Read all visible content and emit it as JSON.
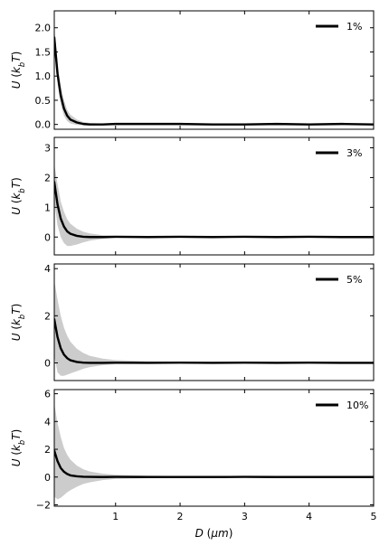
{
  "figure": {
    "ylabel": "U (k_bT)",
    "xlabel": "D (μm)"
  },
  "colors": {
    "line": "#000000",
    "band": "#cccccc",
    "axes": "#000000",
    "background": "#ffffff"
  },
  "chart_data": [
    {
      "type": "line",
      "legend_label": "1%",
      "legend_position": "top-right",
      "xlabel": "",
      "ylabel": "U (k_bT)",
      "xlim": [
        0.05,
        5.0
      ],
      "ylim": [
        -0.1,
        2.35
      ],
      "yticks": [
        0.0,
        0.5,
        1.0,
        1.5,
        2.0
      ],
      "ytick_labels": [
        "0.0",
        "0.5",
        "1.0",
        "1.5",
        "2.0"
      ],
      "xticks": [
        1,
        2,
        3,
        4,
        5
      ],
      "xtick_labels": [],
      "series": [
        {
          "x": [
            0.05,
            0.1,
            0.15,
            0.2,
            0.25,
            0.3,
            0.4,
            0.5,
            0.6,
            0.8,
            1.0,
            1.5,
            2.0,
            2.5,
            3.0,
            3.5,
            4.0,
            4.5,
            5.0
          ],
          "y": [
            1.8,
            1.05,
            0.6,
            0.33,
            0.18,
            0.1,
            0.04,
            0.01,
            0.0,
            0.0,
            0.01,
            0.01,
            0.01,
            0.0,
            0.0,
            0.01,
            0.0,
            0.01,
            0.0
          ],
          "band_lower": [
            1.6,
            0.85,
            0.42,
            0.18,
            0.07,
            0.02,
            -0.01,
            -0.02,
            -0.02,
            -0.01,
            -0.01,
            -0.01,
            -0.01,
            -0.01,
            -0.01,
            -0.01,
            -0.01,
            -0.01,
            -0.01
          ],
          "band_upper": [
            2.0,
            1.25,
            0.8,
            0.5,
            0.3,
            0.2,
            0.1,
            0.05,
            0.03,
            0.02,
            0.02,
            0.02,
            0.02,
            0.02,
            0.02,
            0.02,
            0.02,
            0.02,
            0.02
          ]
        }
      ]
    },
    {
      "type": "line",
      "legend_label": "3%",
      "legend_position": "top-right",
      "xlabel": "",
      "ylabel": "U (k_bT)",
      "xlim": [
        0.05,
        5.0
      ],
      "ylim": [
        -0.6,
        3.35
      ],
      "yticks": [
        0,
        1,
        2,
        3
      ],
      "ytick_labels": [
        "0",
        "1",
        "2",
        "3"
      ],
      "xticks": [
        1,
        2,
        3,
        4,
        5
      ],
      "xtick_labels": [],
      "series": [
        {
          "x": [
            0.05,
            0.1,
            0.15,
            0.2,
            0.25,
            0.3,
            0.4,
            0.5,
            0.6,
            0.8,
            1.0,
            1.5,
            2.0,
            2.5,
            3.0,
            3.5,
            4.0,
            4.5,
            5.0
          ],
          "y": [
            1.85,
            1.1,
            0.62,
            0.35,
            0.19,
            0.11,
            0.04,
            0.01,
            0.0,
            0.0,
            0.01,
            0.0,
            0.01,
            0.0,
            0.01,
            0.0,
            0.01,
            0.0,
            0.0
          ],
          "band_lower": [
            1.2,
            0.4,
            0.0,
            -0.2,
            -0.3,
            -0.3,
            -0.25,
            -0.18,
            -0.12,
            -0.06,
            -0.03,
            -0.02,
            -0.02,
            -0.02,
            -0.02,
            -0.02,
            -0.02,
            -0.02,
            -0.02
          ],
          "band_upper": [
            2.45,
            1.8,
            1.2,
            0.85,
            0.6,
            0.45,
            0.28,
            0.18,
            0.12,
            0.06,
            0.04,
            0.03,
            0.03,
            0.03,
            0.03,
            0.03,
            0.03,
            0.03,
            0.03
          ]
        }
      ]
    },
    {
      "type": "line",
      "legend_label": "5%",
      "legend_position": "top-right",
      "xlabel": "",
      "ylabel": "U (k_bT)",
      "xlim": [
        0.05,
        5.0
      ],
      "ylim": [
        -0.75,
        4.2
      ],
      "yticks": [
        0,
        2,
        4
      ],
      "ytick_labels": [
        "0",
        "2",
        "4"
      ],
      "xticks": [
        1,
        2,
        3,
        4,
        5
      ],
      "xtick_labels": [],
      "series": [
        {
          "x": [
            0.05,
            0.1,
            0.15,
            0.2,
            0.25,
            0.3,
            0.4,
            0.5,
            0.6,
            0.8,
            1.0,
            1.5,
            2.0,
            2.5,
            3.0,
            3.5,
            4.0,
            4.5,
            5.0
          ],
          "y": [
            1.85,
            1.1,
            0.62,
            0.35,
            0.2,
            0.11,
            0.04,
            0.01,
            0.0,
            0.0,
            0.01,
            0.0,
            0.01,
            0.0,
            0.01,
            0.0,
            0.01,
            0.0,
            0.0
          ],
          "band_lower": [
            0.3,
            -0.4,
            -0.55,
            -0.55,
            -0.5,
            -0.45,
            -0.35,
            -0.25,
            -0.18,
            -0.1,
            -0.06,
            -0.04,
            -0.03,
            -0.03,
            -0.03,
            -0.03,
            -0.03,
            -0.03,
            -0.03
          ],
          "band_upper": [
            3.5,
            2.7,
            2.0,
            1.5,
            1.15,
            0.9,
            0.6,
            0.42,
            0.3,
            0.18,
            0.12,
            0.07,
            0.05,
            0.05,
            0.05,
            0.05,
            0.05,
            0.05,
            0.05
          ]
        }
      ]
    },
    {
      "type": "line",
      "legend_label": "10%",
      "legend_position": "top-right",
      "xlabel": "D (μm)",
      "ylabel": "U (k_bT)",
      "xlim": [
        0.05,
        5.0
      ],
      "ylim": [
        -2.1,
        6.3
      ],
      "yticks": [
        -2,
        0,
        2,
        4,
        6
      ],
      "ytick_labels": [
        "−2",
        "0",
        "2",
        "4",
        "6"
      ],
      "xticks": [
        1,
        2,
        3,
        4,
        5
      ],
      "xtick_labels": [
        "1",
        "2",
        "3",
        "4",
        "5"
      ],
      "series": [
        {
          "x": [
            0.05,
            0.1,
            0.15,
            0.2,
            0.25,
            0.3,
            0.4,
            0.5,
            0.6,
            0.8,
            1.0,
            1.5,
            2.0,
            2.5,
            3.0,
            3.5,
            4.0,
            4.5,
            5.0
          ],
          "y": [
            1.9,
            1.15,
            0.65,
            0.38,
            0.22,
            0.12,
            0.05,
            0.02,
            0.01,
            0.0,
            0.01,
            0.0,
            0.0,
            0.0,
            0.01,
            0.0,
            0.0,
            0.0,
            0.0
          ],
          "band_lower": [
            -1.4,
            -1.6,
            -1.5,
            -1.3,
            -1.1,
            -0.95,
            -0.7,
            -0.5,
            -0.38,
            -0.22,
            -0.14,
            -0.08,
            -0.06,
            -0.05,
            -0.05,
            -0.05,
            -0.05,
            -0.05,
            -0.05
          ],
          "band_upper": [
            5.3,
            3.9,
            2.9,
            2.1,
            1.6,
            1.25,
            0.82,
            0.56,
            0.4,
            0.24,
            0.16,
            0.1,
            0.07,
            0.06,
            0.06,
            0.06,
            0.06,
            0.06,
            0.06
          ]
        }
      ]
    }
  ]
}
